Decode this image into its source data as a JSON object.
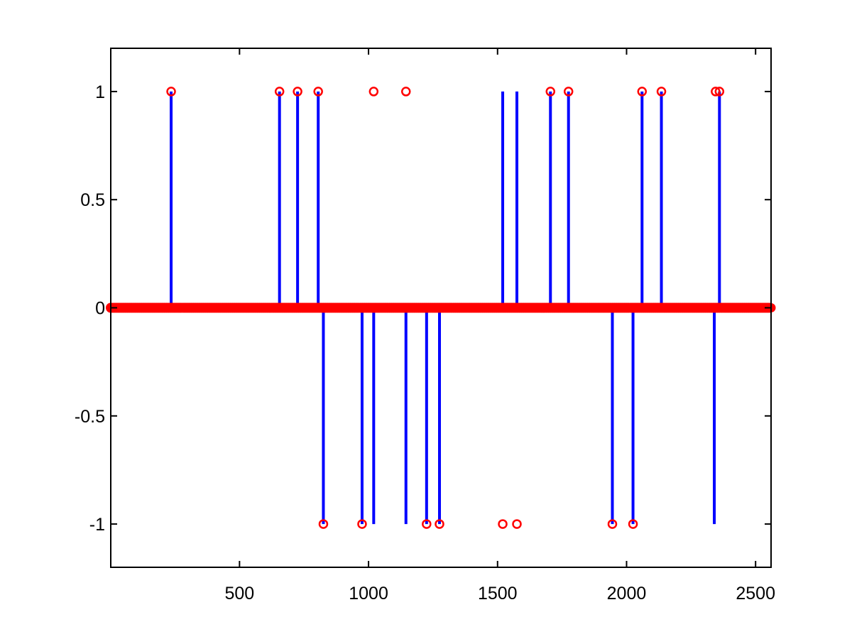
{
  "chart_data": {
    "type": "stem",
    "title": "",
    "xlabel": "",
    "ylabel": "",
    "xlim": [
      1,
      2560
    ],
    "ylim": [
      -1.2,
      1.2
    ],
    "xticks": [
      500,
      1000,
      1500,
      2000,
      2500
    ],
    "yticks": [
      -1,
      -0.5,
      0,
      0.5,
      1
    ],
    "xtick_labels": [
      "500",
      "1000",
      "1500",
      "2000",
      "2500"
    ],
    "ytick_labels": [
      "-1",
      "-0.5",
      "0",
      "0.5",
      "1"
    ],
    "grid": false,
    "legend": "none",
    "series": [
      {
        "style": "stem",
        "color": "#0000ff",
        "x": [
          235,
          655,
          725,
          805,
          825,
          975,
          1020,
          1145,
          1225,
          1275,
          1520,
          1575,
          1705,
          1775,
          1945,
          2025,
          2060,
          2135,
          2340,
          2360
        ],
        "y": [
          1,
          1,
          1,
          1,
          -1,
          -1,
          -1,
          -1,
          -1,
          -1,
          1,
          1,
          1,
          1,
          -1,
          -1,
          1,
          1,
          -1,
          1
        ]
      },
      {
        "style": "markers",
        "marker": "circle",
        "color": "#ff0000",
        "x": [
          235,
          655,
          725,
          805,
          1020,
          1145,
          1705,
          1775,
          2060,
          2135,
          2345,
          2360,
          825,
          975,
          1225,
          1275,
          1520,
          1575,
          1945,
          2025
        ],
        "y": [
          1,
          1,
          1,
          1,
          1,
          1,
          1,
          1,
          1,
          1,
          1,
          1,
          -1,
          -1,
          -1,
          -1,
          -1,
          -1,
          -1,
          -1
        ],
        "baseline_markers": {
          "x_start": 1,
          "x_end": 2560,
          "step": 8,
          "y": 0
        }
      }
    ]
  },
  "colors": {
    "axes": "#000000",
    "stem": "#0000ff",
    "marker": "#ff0000",
    "background": "#ffffff"
  }
}
